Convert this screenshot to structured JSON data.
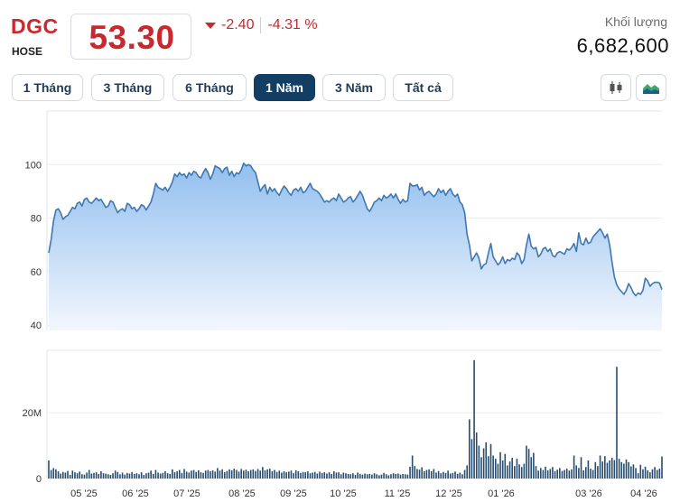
{
  "stock": {
    "ticker": "DGC",
    "exchange": "HOSE",
    "price": "53.30",
    "change": "-2.40",
    "change_pct": "-4.31 %",
    "volume_label": "Khối lượng",
    "volume": "6,682,600",
    "down_color": "#c8282e"
  },
  "ranges": {
    "tabs": [
      {
        "label": "1 Tháng",
        "active": false
      },
      {
        "label": "3 Tháng",
        "active": false
      },
      {
        "label": "6 Tháng",
        "active": false
      },
      {
        "label": "1 Năm",
        "active": true
      },
      {
        "label": "3 Năm",
        "active": false
      },
      {
        "label": "Tất cả",
        "active": false
      }
    ],
    "chart_type_icons": [
      "candlestick-icon",
      "area-chart-icon"
    ]
  },
  "chart_data": [
    {
      "type": "area",
      "title": "",
      "xlabel": "",
      "ylabel": "",
      "x_ticks": [
        "05 '25",
        "06 '25",
        "07 '25",
        "08 '25",
        "09 '25",
        "10 '25",
        "11 '25",
        "12 '25",
        "01 '26",
        "03 '26",
        "04 '26"
      ],
      "y_ticks": [
        40,
        60,
        80,
        100
      ],
      "ylim": [
        38,
        120
      ],
      "grid": true,
      "line_color": "#3f78b0",
      "fill_top": "#8dbbee",
      "fill_bottom": "#f2f7fd",
      "series": [
        {
          "values": [
            67,
            72,
            79,
            83,
            83.5,
            82,
            79.5,
            80.5,
            81,
            82.5,
            84,
            83.5,
            85.5,
            86,
            84.5,
            87,
            87.5,
            86,
            85.5,
            86.5,
            87.5,
            86.5,
            87,
            85.5,
            84,
            84.5,
            86.5,
            86,
            84,
            82,
            83,
            83.5,
            82.5,
            85.5,
            85,
            83.5,
            84,
            82.5,
            83.5,
            85,
            84.5,
            83,
            84.5,
            86,
            89,
            93,
            91.5,
            91,
            90.5,
            91.5,
            90,
            91.5,
            93.5,
            96.5,
            95.5,
            97,
            96,
            96.5,
            95,
            97,
            96,
            97.5,
            97,
            95.5,
            95,
            97,
            98.5,
            97,
            94.5,
            96.5,
            99.5,
            99,
            98.5,
            97,
            98.5,
            99,
            96,
            97.5,
            95.5,
            97,
            96.5,
            98,
            100.5,
            99.5,
            100,
            99.5,
            98,
            97,
            93.5,
            90,
            91.5,
            92.5,
            89,
            91.5,
            90,
            91,
            89.5,
            88.5,
            90.5,
            92,
            91,
            89.5,
            88.5,
            90.5,
            91,
            90,
            91.5,
            89.5,
            90,
            91.5,
            93,
            91,
            90.5,
            90,
            89,
            87.5,
            86,
            86.5,
            86,
            87,
            87.5,
            86.5,
            89,
            87.5,
            86,
            86.5,
            87.5,
            88,
            86,
            87,
            88.5,
            90,
            88.5,
            86,
            83.5,
            82.5,
            84,
            86,
            86.5,
            87.5,
            86.5,
            88.5,
            87.5,
            88,
            89,
            87.5,
            89,
            87,
            85.5,
            87,
            86,
            86.5,
            93,
            92,
            92,
            92.5,
            90.5,
            91.5,
            88.5,
            89.5,
            90,
            89,
            88,
            89,
            91,
            89.5,
            90.5,
            88.5,
            90,
            91,
            89,
            88,
            89,
            86,
            85,
            82,
            74,
            70,
            64,
            65.5,
            67,
            65,
            61,
            62.5,
            63,
            67,
            70.5,
            65.5,
            64,
            62.5,
            63.5,
            65.5,
            63,
            64.5,
            64,
            65,
            64.5,
            67,
            66,
            63,
            64.5,
            70,
            74,
            69.5,
            68.5,
            69,
            65.5,
            66.5,
            68.5,
            69,
            67.5,
            68.5,
            66,
            65.5,
            67,
            67.5,
            67,
            66.5,
            68.5,
            68,
            69,
            70.5,
            67.5,
            74.5,
            70.5,
            70,
            72.5,
            70.5,
            71,
            73,
            74,
            75,
            76,
            74.5,
            72.5,
            74,
            70,
            63.5,
            58,
            55,
            53.5,
            52.5,
            51.5,
            53,
            55.5,
            54,
            52,
            51,
            52,
            51.5,
            53,
            57.5,
            56.5,
            54.5,
            55.5,
            56,
            56,
            55.7,
            53.3
          ]
        }
      ]
    },
    {
      "type": "bar",
      "title": "",
      "xlabel": "",
      "ylabel": "",
      "x_ticks": [
        "05 '25",
        "06 '25",
        "07 '25",
        "08 '25",
        "09 '25",
        "10 '25",
        "11 '25",
        "12 '25",
        "01 '26",
        "03 '26",
        "04 '26"
      ],
      "y_ticks": [
        0,
        20
      ],
      "y_tick_labels": [
        "0",
        "20M"
      ],
      "unit": "M",
      "ylim": [
        0,
        39
      ],
      "grid": true,
      "bar_color": "#264d6f",
      "values": [
        5.5,
        2.6,
        3.2,
        2.8,
        2.2,
        1.5,
        2.0,
        1.8,
        2.3,
        1.1,
        2.4,
        1.9,
        1.6,
        2.1,
        1.3,
        1.2,
        1.8,
        2.6,
        1.5,
        1.7,
        1.9,
        1.4,
        2.2,
        1.6,
        1.5,
        1.3,
        1.1,
        1.6,
        2.4,
        2.0,
        1.3,
        1.8,
        1.2,
        1.7,
        1.5,
        2.0,
        1.4,
        1.6,
        1.3,
        1.9,
        1.1,
        1.6,
        1.8,
        2.4,
        1.4,
        2.6,
        1.8,
        1.5,
        1.7,
        2.2,
        1.6,
        1.4,
        2.8,
        1.9,
        2.2,
        2.6,
        1.7,
        2.9,
        2.1,
        1.8,
        2.4,
        2.6,
        2.0,
        2.5,
        1.9,
        1.7,
        2.4,
        2.6,
        2.2,
        2.5,
        2.1,
        3.2,
        2.4,
        2.8,
        1.9,
        2.3,
        2.8,
        2.5,
        3.0,
        2.6,
        2.1,
        2.9,
        2.4,
        2.7,
        2.2,
        2.6,
        2.8,
        2.3,
        2.9,
        2.4,
        3.5,
        2.5,
        2.8,
        3.0,
        2.2,
        2.6,
        2.0,
        2.4,
        1.8,
        2.2,
        1.9,
        2.1,
        2.4,
        1.6,
        2.5,
        2.2,
        1.7,
        2.0,
        1.9,
        2.2,
        1.6,
        1.8,
        2.0,
        1.5,
        2.1,
        1.7,
        1.9,
        1.5,
        1.9,
        1.4,
        2.2,
        1.8,
        1.9,
        1.3,
        1.8,
        1.6,
        1.4,
        1.3,
        1.6,
        1.1,
        1.8,
        1.4,
        1.2,
        1.5,
        1.3,
        1.4,
        1.2,
        1.6,
        1.3,
        1.0,
        1.2,
        1.7,
        1.3,
        1.0,
        1.3,
        1.6,
        1.4,
        1.5,
        1.2,
        1.4,
        1.3,
        1.2,
        3.6,
        7.0,
        3.8,
        2.9,
        2.7,
        3.4,
        2.2,
        2.6,
        2.8,
        2.2,
        2.9,
        1.8,
        2.3,
        1.6,
        2.0,
        1.7,
        2.4,
        1.5,
        1.7,
        2.1,
        1.4,
        1.8,
        1.3,
        2.6,
        4.0,
        18.0,
        12.0,
        36.0,
        14.0,
        10.0,
        6.5,
        9.2,
        11.0,
        6.8,
        10.5,
        7.0,
        6.0,
        4.5,
        8.0,
        5.5,
        7.5,
        4.0,
        5.2,
        6.3,
        3.8,
        6.0,
        4.3,
        3.5,
        4.5,
        10.0,
        9.0,
        6.5,
        7.8,
        3.8,
        2.4,
        3.2,
        2.6,
        3.6,
        2.5,
        2.9,
        3.5,
        2.2,
        2.7,
        3.2,
        2.3,
        2.6,
        3.0,
        2.4,
        2.8,
        7.0,
        4.0,
        3.2,
        6.5,
        2.5,
        3.5,
        5.5,
        3.0,
        2.6,
        5.0,
        3.8,
        7.0,
        5.2,
        6.8,
        4.8,
        5.5,
        6.3,
        5.6,
        34.0,
        6.0,
        5.0,
        4.5,
        5.8,
        5.0,
        3.7,
        4.3,
        3.2,
        1.6,
        4.2,
        2.8,
        3.6,
        2.5,
        1.9,
        2.8,
        3.5,
        2.6,
        3.0,
        6.7
      ]
    }
  ]
}
